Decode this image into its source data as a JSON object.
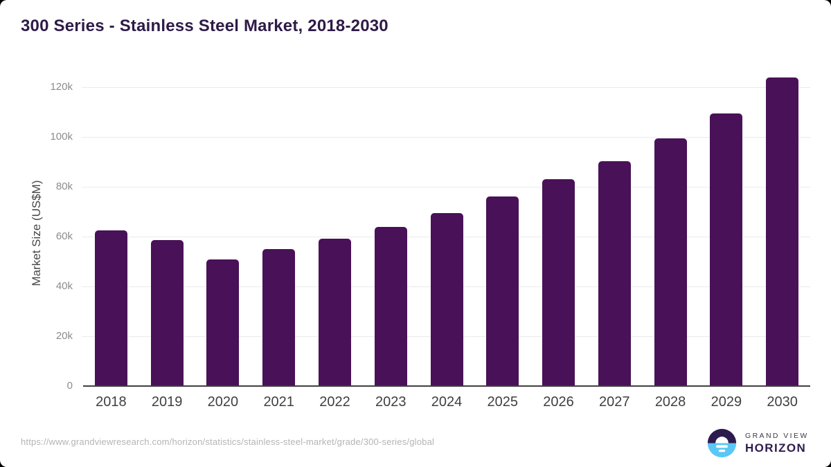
{
  "title": "300 Series - Stainless Steel Market, 2018-2030",
  "chart_data": {
    "type": "bar",
    "title": "300 Series - Stainless Steel Market, 2018-2030",
    "categories": [
      "2018",
      "2019",
      "2020",
      "2021",
      "2022",
      "2023",
      "2024",
      "2025",
      "2026",
      "2027",
      "2028",
      "2029",
      "2030"
    ],
    "values": [
      62500,
      58600,
      50700,
      55100,
      59300,
      64000,
      69500,
      76100,
      83000,
      90300,
      99400,
      109400,
      124000
    ],
    "xlabel": "",
    "ylabel": "Market Size (US$M)",
    "ylim": [
      0,
      130000
    ],
    "y_ticks": [
      {
        "value": 0,
        "label": "0"
      },
      {
        "value": 20000,
        "label": "20k"
      },
      {
        "value": 40000,
        "label": "40k"
      },
      {
        "value": 60000,
        "label": "60k"
      },
      {
        "value": 80000,
        "label": "80k"
      },
      {
        "value": 100000,
        "label": "100k"
      },
      {
        "value": 120000,
        "label": "120k"
      }
    ],
    "grid": true,
    "legend": false,
    "bar_color": "#491157",
    "gridline_color": "#ebebeb",
    "axis_color": "#3f3f3f"
  },
  "footer": {
    "source_url": "https://www.grandviewresearch.com/horizon/statistics/stainless-steel-market/grade/300-series/global",
    "logo": {
      "line1": "GRAND VIEW",
      "line2": "HORIZON",
      "mark_colors": {
        "top": "#2d1b4e",
        "bottom": "#5ac8f5",
        "sun": "#ffffff"
      }
    }
  },
  "colors": {
    "title": "#2e1a47",
    "background": "#ffffff",
    "y_tick_text": "#8c8c8c",
    "x_tick_text": "#3f3f3f",
    "source_text": "#b4b4b4"
  }
}
